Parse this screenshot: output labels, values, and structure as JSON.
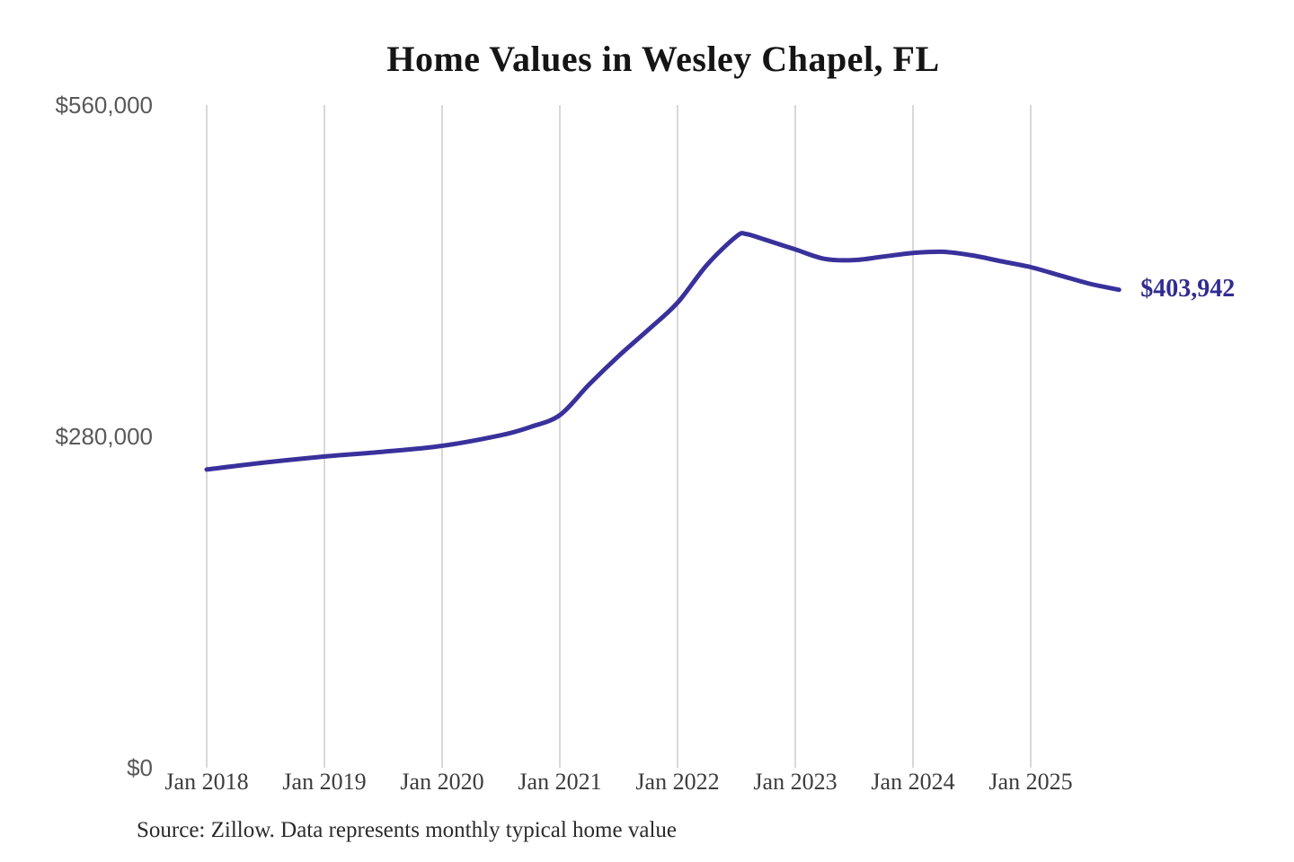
{
  "title": "Home Values in Wesley Chapel, FL",
  "source_note": "Source: Zillow. Data represents monthly typical home value",
  "colors": {
    "background": "#ffffff",
    "line": "#39319b",
    "end_label": "#312c90",
    "grid": "#cbcbcb",
    "y_tick_text": "#595959",
    "x_tick_text": "#3d3d3d",
    "title_text": "#151515",
    "source_text": "#2b2b2b"
  },
  "chart_data": {
    "type": "line",
    "title": "Home Values in Wesley Chapel, FL",
    "xlabel": "",
    "ylabel": "",
    "ylim": [
      0,
      560000
    ],
    "grid": "vertical-only",
    "legend": "none",
    "x_ticks": [
      "Jan 2018",
      "Jan 2019",
      "Jan 2020",
      "Jan 2021",
      "Jan 2022",
      "Jan 2023",
      "Jan 2024",
      "Jan 2025"
    ],
    "y_ticks": [
      {
        "label": "$560,000",
        "value": 560000
      },
      {
        "label": "$280,000",
        "value": 280000
      },
      {
        "label": "$0",
        "value": 0
      }
    ],
    "end_label": {
      "text": "$403,942",
      "value": 403942
    },
    "series": [
      {
        "name": "Monthly typical home value",
        "points": [
          {
            "date": "2018-01",
            "value": 252000
          },
          {
            "date": "2018-07",
            "value": 258000
          },
          {
            "date": "2019-01",
            "value": 263000
          },
          {
            "date": "2019-07",
            "value": 267000
          },
          {
            "date": "2020-01",
            "value": 272000
          },
          {
            "date": "2020-07",
            "value": 281000
          },
          {
            "date": "2020-10",
            "value": 288000
          },
          {
            "date": "2021-01",
            "value": 298000
          },
          {
            "date": "2021-04",
            "value": 324000
          },
          {
            "date": "2021-07",
            "value": 348000
          },
          {
            "date": "2021-10",
            "value": 370000
          },
          {
            "date": "2022-01",
            "value": 393000
          },
          {
            "date": "2022-04",
            "value": 425000
          },
          {
            "date": "2022-07",
            "value": 449000
          },
          {
            "date": "2022-08",
            "value": 451000
          },
          {
            "date": "2022-10",
            "value": 446000
          },
          {
            "date": "2023-01",
            "value": 438000
          },
          {
            "date": "2023-04",
            "value": 430000
          },
          {
            "date": "2023-07",
            "value": 429000
          },
          {
            "date": "2023-10",
            "value": 432000
          },
          {
            "date": "2024-01",
            "value": 435000
          },
          {
            "date": "2024-04",
            "value": 436000
          },
          {
            "date": "2024-07",
            "value": 433000
          },
          {
            "date": "2024-10",
            "value": 428000
          },
          {
            "date": "2025-01",
            "value": 423000
          },
          {
            "date": "2025-04",
            "value": 416000
          },
          {
            "date": "2025-07",
            "value": 409000
          },
          {
            "date": "2025-10",
            "value": 403942
          }
        ]
      }
    ]
  }
}
